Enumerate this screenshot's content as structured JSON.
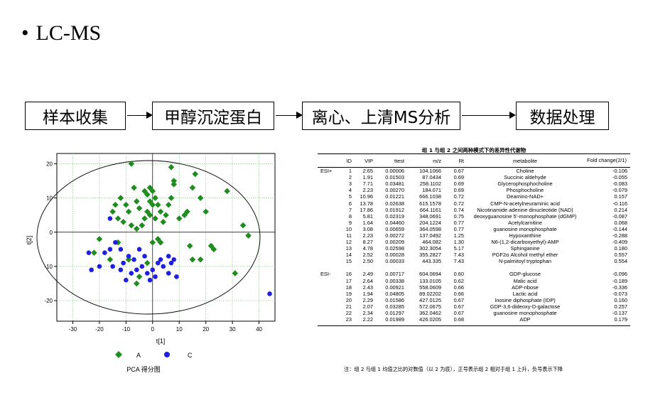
{
  "slide": {
    "bullet": "•",
    "title": "LC-MS"
  },
  "flow": [
    {
      "label": "样本收集"
    },
    {
      "label": "甲醇沉淀蛋白"
    },
    {
      "label": "离心、上清MS分析"
    },
    {
      "label": "数据处理"
    }
  ],
  "pca": {
    "x_ticks": [
      "-30",
      "-20",
      "-10",
      "0",
      "10",
      "20",
      "30",
      "40"
    ],
    "y_ticks": [
      "20",
      "10",
      "0",
      "-10",
      "-20"
    ],
    "xlabel": "t[1]",
    "ylabel": "t[2]",
    "caption": "PCA 得分图",
    "legend": [
      {
        "label": "A",
        "color": "#1f8c1f",
        "shape": "diamond"
      },
      {
        "label": "C",
        "color": "#1f1fe0",
        "shape": "circle"
      }
    ]
  },
  "chart_data": {
    "type": "scatter",
    "xlim": [
      -36,
      46
    ],
    "ylim": [
      -26,
      23
    ],
    "series": [
      {
        "name": "A",
        "points": [
          [
            -8,
            20
          ],
          [
            -12,
            10
          ],
          [
            -10,
            8
          ],
          [
            -9,
            6
          ],
          [
            -7,
            13
          ],
          [
            -6,
            9
          ],
          [
            -5,
            7
          ],
          [
            -3,
            12
          ],
          [
            -2,
            11
          ],
          [
            -1,
            13
          ],
          [
            0,
            12
          ],
          [
            -1,
            9
          ],
          [
            1,
            10
          ],
          [
            2,
            8
          ],
          [
            3,
            6
          ],
          [
            4,
            3
          ],
          [
            5,
            5
          ],
          [
            6,
            8
          ],
          [
            7,
            10
          ],
          [
            8,
            14
          ],
          [
            7,
            19
          ],
          [
            8,
            15
          ],
          [
            10,
            4
          ],
          [
            12,
            5
          ],
          [
            13,
            6
          ],
          [
            15,
            13
          ],
          [
            16,
            17
          ],
          [
            18,
            10
          ],
          [
            20,
            6
          ],
          [
            -14,
            8
          ],
          [
            -15,
            6
          ],
          [
            -13,
            4
          ],
          [
            -11,
            3
          ],
          [
            -8,
            2
          ],
          [
            -6,
            1
          ],
          [
            -4,
            2
          ],
          [
            -3,
            4
          ],
          [
            -2,
            6
          ],
          [
            -1,
            5
          ],
          [
            0,
            8
          ],
          [
            1,
            4
          ],
          [
            2,
            -2
          ],
          [
            3,
            -3
          ],
          [
            14,
            -4
          ],
          [
            15,
            -8
          ],
          [
            18,
            -8
          ],
          [
            22,
            -4
          ],
          [
            23,
            -5
          ],
          [
            28,
            12
          ],
          [
            34,
            2
          ],
          [
            36,
            -1
          ],
          [
            31,
            -12
          ],
          [
            -6,
            -15
          ],
          [
            -9,
            -8
          ],
          [
            -13,
            -3
          ],
          [
            -16,
            -8
          ],
          [
            -20,
            -2
          ],
          [
            -22,
            -6
          ],
          [
            -5,
            -13
          ],
          [
            -2,
            -9
          ],
          [
            0,
            -3
          ]
        ]
      },
      {
        "name": "C",
        "points": [
          [
            -24,
            -6
          ],
          [
            -23,
            -11
          ],
          [
            -20,
            -10
          ],
          [
            -18,
            -6
          ],
          [
            -16,
            -5
          ],
          [
            -15,
            -10
          ],
          [
            -12,
            -5
          ],
          [
            -11,
            -9
          ],
          [
            -9,
            -7
          ],
          [
            -7,
            -8
          ],
          [
            -6,
            -11
          ],
          [
            -4,
            -10
          ],
          [
            -3,
            -7
          ],
          [
            -2,
            -12
          ],
          [
            0,
            -11
          ],
          [
            1,
            -13
          ],
          [
            2,
            -9
          ],
          [
            3,
            -8
          ],
          [
            4,
            -10
          ],
          [
            6,
            -12
          ],
          [
            6,
            -7
          ],
          [
            7,
            -9
          ],
          [
            8,
            -8
          ],
          [
            9,
            -13
          ],
          [
            -8,
            -12
          ],
          [
            -10,
            -14
          ],
          [
            -12,
            -11
          ],
          [
            -14,
            -3
          ],
          [
            -5,
            -5
          ],
          [
            44,
            -18
          ],
          [
            -16,
            4
          ],
          [
            -1,
            -14
          ]
        ]
      }
    ]
  },
  "table": {
    "title": "组 1 与组 2 之间两种模式下的差异性代谢物",
    "headers": {
      "id": "ID",
      "vip": "VIP",
      "ttest": "ttest",
      "mz": "m/z",
      "rt": "Rt",
      "metabolite": "metabolite",
      "fold": "Fold change(2/1)"
    },
    "groups": [
      {
        "mode": "ESI+",
        "rows": [
          [
            "1",
            "2.65",
            "0.00006",
            "104.1066",
            "0.67",
            "Choline",
            "-0.106"
          ],
          [
            "2",
            "1.91",
            "0.01503",
            "87.0434",
            "0.69",
            "Succinic aldehyde",
            "-0.055"
          ],
          [
            "3",
            "7.71",
            "0.03481",
            "258.1102",
            "0.69",
            "Glycerophosphocholine",
            "-0.083"
          ],
          [
            "4",
            "2.23",
            "0.00270",
            "184.071",
            "0.69",
            "Phosphocholine",
            "-0.079"
          ],
          [
            "5",
            "10.96",
            "0.01221",
            "666.1038",
            "0.72",
            "Deamino-NAD+",
            "0.157"
          ],
          [
            "6",
            "13.78",
            "0.02638",
            "615.1578",
            "0.72",
            "CMP-N-acetylneuraminic acid",
            "-0.116"
          ],
          [
            "7",
            "17.86",
            "0.01912",
            "664.1161",
            "0.74",
            "Nicotinamide adenine dinucleotide (NAD)",
            "0.214"
          ],
          [
            "8",
            "5.81",
            "0.02319",
            "348.0691",
            "0.75",
            "deoxyguanosine 5'-monophosphate (dGMP)",
            "-0.087"
          ],
          [
            "9",
            "1.64",
            "0.04460",
            "204.1224",
            "0.77",
            "Acetylcarnitine",
            "0.068"
          ],
          [
            "10",
            "3.08",
            "0.00659",
            "364.0598",
            "0.77",
            "guanosine monophosphate",
            "-0.144"
          ],
          [
            "11",
            "2.23",
            "0.00272",
            "137.0492",
            "1.25",
            "Hypoxanthine",
            "-0.288"
          ],
          [
            "12",
            "8.27",
            "0.00209",
            "464.082",
            "1.30",
            "N6-(1,2-dicarboxyethyl)-AMP",
            "-0.409"
          ],
          [
            "13",
            "4.78",
            "0.02598",
            "302.3054",
            "5.17",
            "Sphinganine",
            "0.180"
          ],
          [
            "14",
            "2.52",
            "0.00028",
            "355.2827",
            "7.43",
            "PGF2α Alcohol methyl ether",
            "0.557"
          ],
          [
            "15",
            "2.50",
            "0.00033",
            "443.335",
            "7.43",
            "N-palmitoyl tryptophan",
            "0.554"
          ]
        ]
      },
      {
        "mode": "ESI-",
        "rows": [
          [
            "16",
            "2.49",
            "0.00717",
            "604.0694",
            "0.60",
            "GDP-glucose",
            "-0.096"
          ],
          [
            "17",
            "2.64",
            "0.00338",
            "133.0105",
            "0.62",
            "Malic acid",
            "-0.189"
          ],
          [
            "18",
            "2.43",
            "0.00921",
            "558.0609",
            "0.66",
            "ADP-ribose",
            "-0.336"
          ],
          [
            "19",
            "1.94",
            "0.04805",
            "89.02202",
            "0.66",
            "Lactic acid",
            "-0.073"
          ],
          [
            "20",
            "2.29",
            "0.01586",
            "427.0125",
            "0.67",
            "Inosine diphosphate (IDP)",
            "0.160"
          ],
          [
            "21",
            "2.07",
            "0.03285",
            "572.0675",
            "0.67",
            "GDP-3,6-dideoxy-D-galactose",
            "0.257"
          ],
          [
            "22",
            "2.34",
            "0.01297",
            "362.0462",
            "0.67",
            "guanosine monophosphate",
            "-0.137"
          ],
          [
            "23",
            "2.22",
            "0.01989",
            "426.0205",
            "0.68",
            "ADP",
            "0.179"
          ]
        ]
      }
    ],
    "note": "注：组 2 与组 1 均值之比的对数值（以 2 为底），正号表示组 2 相对于组 1 上升，负号表示下降"
  }
}
